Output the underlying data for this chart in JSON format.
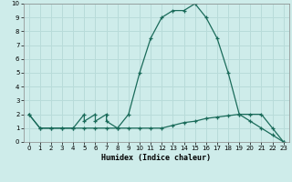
{
  "xlabel": "Humidex (Indice chaleur)",
  "xlim": [
    -0.5,
    23.5
  ],
  "ylim": [
    0,
    10
  ],
  "xticks": [
    0,
    1,
    2,
    3,
    4,
    5,
    6,
    7,
    8,
    9,
    10,
    11,
    12,
    13,
    14,
    15,
    16,
    17,
    18,
    19,
    20,
    21,
    22,
    23
  ],
  "yticks": [
    0,
    1,
    2,
    3,
    4,
    5,
    6,
    7,
    8,
    9,
    10
  ],
  "bg_color": "#ceecea",
  "line_color": "#1a6b5a",
  "grid_color": "#b8dbd9",
  "line1_x": [
    0,
    1,
    2,
    3,
    4,
    5,
    5,
    6,
    6,
    7,
    7,
    8,
    9,
    10,
    11,
    12,
    13,
    14,
    15,
    16,
    17,
    18,
    19,
    20,
    21,
    22,
    23
  ],
  "line1_y": [
    2,
    1,
    1,
    1,
    1,
    2,
    1.5,
    2,
    1.5,
    2,
    1.5,
    1,
    2,
    5,
    7.5,
    9,
    9.5,
    9.5,
    10,
    9,
    7.5,
    5,
    2,
    2,
    2,
    1,
    0
  ],
  "line2_x": [
    0,
    1,
    2,
    3,
    4,
    5,
    6,
    7,
    8,
    9,
    10,
    11,
    12,
    13,
    14,
    15,
    16,
    17,
    18,
    19,
    20,
    21,
    22,
    23
  ],
  "line2_y": [
    2,
    1,
    1,
    1,
    1,
    1,
    1,
    1,
    1,
    1,
    1,
    1,
    1,
    1.2,
    1.4,
    1.5,
    1.7,
    1.8,
    1.9,
    2,
    1.5,
    1,
    0.5,
    0
  ],
  "tick_fontsize": 5,
  "xlabel_fontsize": 6
}
